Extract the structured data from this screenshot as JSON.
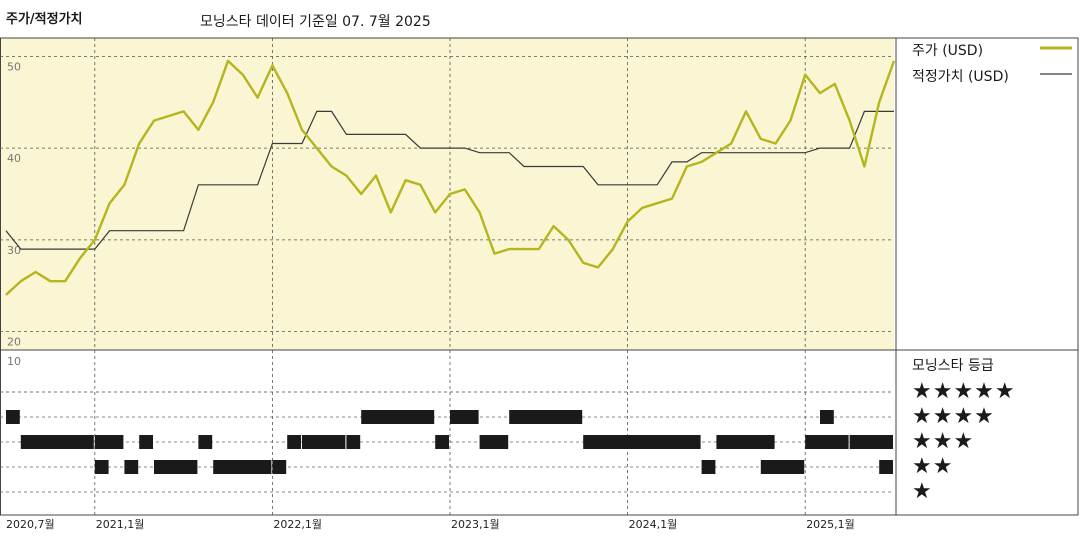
{
  "header": {
    "title": "주가/적정가치",
    "subtitle": "모닝스타 데이터 기준일 07. 7월 2025"
  },
  "legend": {
    "price_label": "주가 (USD)",
    "fair_label": "적정가치 (USD)",
    "rating_title": "모닝스타 등급",
    "stars": [
      "★★★★★",
      "★★★★",
      "★★★",
      "★★",
      "★"
    ]
  },
  "colors": {
    "price": "#b5b51e",
    "fair": "#3a3a3a",
    "panel": "#faf5d2",
    "rating": "#1a1a1a"
  },
  "chart_data": [
    {
      "type": "line",
      "title": "주가/적정가치",
      "ylim": [
        18,
        52
      ],
      "y_ticks": [
        20,
        30,
        40,
        50
      ],
      "x_ticks": [
        "2020,7월",
        "2021,1월",
        "2022,1월",
        "2023,1월",
        "2024,1월",
        "2025,1월"
      ],
      "x_tick_dates": [
        "2020-07",
        "2021-01",
        "2022-01",
        "2023-01",
        "2024-01",
        "2025-01"
      ],
      "x_range": [
        "2020-07",
        "2025-07"
      ],
      "series": [
        {
          "name": "주가 (USD)",
          "x": [
            "2020-07",
            "2020-08",
            "2020-09",
            "2020-10",
            "2020-11",
            "2020-12",
            "2021-01",
            "2021-02",
            "2021-03",
            "2021-04",
            "2021-05",
            "2021-06",
            "2021-07",
            "2021-08",
            "2021-09",
            "2021-10",
            "2021-11",
            "2021-12",
            "2022-01",
            "2022-02",
            "2022-03",
            "2022-04",
            "2022-05",
            "2022-06",
            "2022-07",
            "2022-08",
            "2022-09",
            "2022-10",
            "2022-11",
            "2022-12",
            "2023-01",
            "2023-02",
            "2023-03",
            "2023-04",
            "2023-05",
            "2023-06",
            "2023-07",
            "2023-08",
            "2023-09",
            "2023-10",
            "2023-11",
            "2023-12",
            "2024-01",
            "2024-02",
            "2024-03",
            "2024-04",
            "2024-05",
            "2024-06",
            "2024-07",
            "2024-08",
            "2024-09",
            "2024-10",
            "2024-11",
            "2024-12",
            "2025-01",
            "2025-02",
            "2025-03",
            "2025-04",
            "2025-05",
            "2025-06",
            "2025-07"
          ],
          "y": [
            24,
            25.5,
            26.5,
            25.5,
            25.5,
            28,
            30,
            34,
            36,
            40.5,
            43,
            43.5,
            44,
            42,
            45,
            49.5,
            48,
            45.5,
            49,
            46,
            42,
            40,
            38,
            37,
            35,
            37,
            33,
            36.5,
            36,
            33,
            35,
            35.5,
            33,
            28.5,
            29,
            29,
            29,
            31.5,
            30,
            27.5,
            27,
            29,
            32,
            33.5,
            34,
            34.5,
            38,
            38.5,
            39.5,
            40.5,
            44,
            41,
            40.5,
            43,
            48,
            46,
            47,
            43,
            38,
            45,
            49.5
          ]
        },
        {
          "name": "적정가치 (USD)",
          "x": [
            "2020-07",
            "2020-08",
            "2021-01",
            "2021-02",
            "2021-07",
            "2021-08",
            "2021-12",
            "2022-01",
            "2022-03",
            "2022-04",
            "2022-05",
            "2022-06",
            "2022-10",
            "2022-11",
            "2023-02",
            "2023-03",
            "2023-05",
            "2023-06",
            "2023-10",
            "2023-11",
            "2023-12",
            "2024-01",
            "2024-03",
            "2024-04",
            "2024-05",
            "2024-06",
            "2024-08",
            "2024-09",
            "2024-11",
            "2024-12",
            "2025-01",
            "2025-02",
            "2025-04",
            "2025-05",
            "2025-07"
          ],
          "y": [
            31,
            29,
            29,
            31,
            31,
            36,
            36,
            40.5,
            40.5,
            44,
            44,
            41.5,
            41.5,
            40,
            40,
            39.5,
            39.5,
            38,
            38,
            36,
            36,
            36,
            36,
            38.5,
            38.5,
            39.5,
            39.5,
            39.5,
            39.5,
            39.5,
            39.5,
            40,
            40,
            44,
            44
          ]
        }
      ]
    },
    {
      "type": "rating-timeline",
      "title": "모닝스타 등급",
      "segments": [
        {
          "start": "2020-07",
          "end": "2020-08",
          "stars": 4
        },
        {
          "start": "2020-08",
          "end": "2021-01",
          "stars": 3
        },
        {
          "start": "2021-01",
          "end": "2021-03",
          "stars": 3
        },
        {
          "start": "2021-01",
          "end": "2021-02",
          "stars": 2
        },
        {
          "start": "2021-03",
          "end": "2021-04",
          "stars": 2
        },
        {
          "start": "2021-04",
          "end": "2021-05",
          "stars": 3
        },
        {
          "start": "2021-05",
          "end": "2021-08",
          "stars": 2
        },
        {
          "start": "2021-08",
          "end": "2021-09",
          "stars": 3
        },
        {
          "start": "2021-09",
          "end": "2022-01",
          "stars": 2
        },
        {
          "start": "2022-01",
          "end": "2022-02",
          "stars": 2
        },
        {
          "start": "2022-02",
          "end": "2022-03",
          "stars": 3
        },
        {
          "start": "2022-03",
          "end": "2022-06",
          "stars": 3
        },
        {
          "start": "2022-06",
          "end": "2022-07",
          "stars": 3
        },
        {
          "start": "2022-07",
          "end": "2022-12",
          "stars": 4
        },
        {
          "start": "2022-12",
          "end": "2023-01",
          "stars": 3
        },
        {
          "start": "2023-01",
          "end": "2023-03",
          "stars": 4
        },
        {
          "start": "2023-03",
          "end": "2023-05",
          "stars": 3
        },
        {
          "start": "2023-05",
          "end": "2023-10",
          "stars": 4
        },
        {
          "start": "2023-10",
          "end": "2024-06",
          "stars": 3
        },
        {
          "start": "2024-06",
          "end": "2024-07",
          "stars": 2
        },
        {
          "start": "2024-07",
          "end": "2024-11",
          "stars": 3
        },
        {
          "start": "2024-10",
          "end": "2025-01",
          "stars": 2
        },
        {
          "start": "2025-01",
          "end": "2025-04",
          "stars": 3
        },
        {
          "start": "2025-02",
          "end": "2025-03",
          "stars": 4
        },
        {
          "start": "2025-04",
          "end": "2025-07",
          "stars": 3
        },
        {
          "start": "2025-06",
          "end": "2025-07",
          "stars": 2
        }
      ]
    }
  ]
}
